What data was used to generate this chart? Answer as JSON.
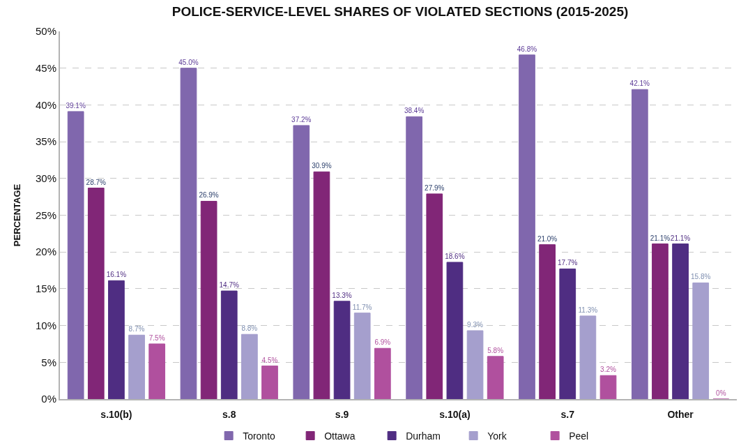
{
  "chart_data": {
    "type": "bar",
    "title": "POLICE-SERVICE-LEVEL SHARES OF VIOLATED SECTIONS (2015-2025)",
    "ylabel": "PERCENTAGE",
    "categories": [
      "s.10(b)",
      "s.8",
      "s.9",
      "s.10(a)",
      "s.7",
      "Other"
    ],
    "series": [
      {
        "name": "Toronto",
        "color": "#8067ad",
        "values": [
          39.1,
          45.0,
          37.2,
          38.4,
          46.8,
          42.1
        ],
        "value_labels": [
          "39.1%",
          "45.0%",
          "37.2%",
          "38.4%",
          "46.8%",
          "42.1%"
        ]
      },
      {
        "name": "Ottawa",
        "color": "#812677",
        "values": [
          28.7,
          26.9,
          30.9,
          27.9,
          21.0,
          21.1
        ],
        "value_labels": [
          "28.7%",
          "26.9%",
          "30.9%",
          "27.9%",
          "21.0%",
          "21.1%"
        ]
      },
      {
        "name": "Durham",
        "color": "#4f2d82",
        "values": [
          16.1,
          14.7,
          13.3,
          18.6,
          17.7,
          21.1
        ],
        "value_labels": [
          "16.1%",
          "14.7%",
          "13.3%",
          "18.6%",
          "17.7%",
          "21.1%"
        ]
      },
      {
        "name": "York",
        "color": "#a59fcd",
        "values": [
          8.7,
          8.8,
          11.7,
          9.3,
          11.3,
          15.8
        ],
        "value_labels": [
          "8.7%",
          "8.8%",
          "11.7%",
          "9.3%",
          "11.3%",
          "15.8%"
        ]
      },
      {
        "name": "Peel",
        "color": "#b0509e",
        "values": [
          7.5,
          4.5,
          6.9,
          5.8,
          3.2,
          0
        ],
        "value_labels": [
          "7.5%",
          "4.5%",
          "6.9%",
          "5.8%",
          "3.2%",
          "0%"
        ]
      }
    ],
    "ylim": [
      0,
      50
    ],
    "yticks": [
      {
        "value": 0,
        "label": "0%"
      },
      {
        "value": 5,
        "label": "5%"
      },
      {
        "value": 10,
        "label": "10%"
      },
      {
        "value": 15,
        "label": "15%"
      },
      {
        "value": 20,
        "label": "20%"
      },
      {
        "value": 25,
        "label": "25%"
      },
      {
        "value": 30,
        "label": "30%"
      },
      {
        "value": 35,
        "label": "35%"
      },
      {
        "value": 40,
        "label": "40%"
      },
      {
        "value": 45,
        "label": "45%"
      },
      {
        "value": 50,
        "label": "50%"
      }
    ],
    "grid": "y",
    "legend": "bottom"
  }
}
